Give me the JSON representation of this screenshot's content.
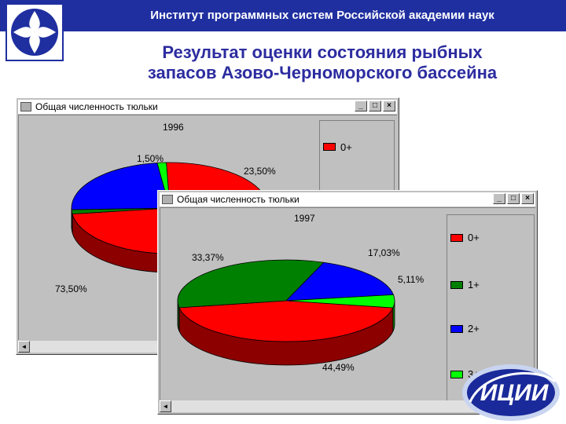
{
  "header": {
    "title": "Институт программных систем Российской академии наук"
  },
  "slide": {
    "title_line1": "Результат оценки состояния рыбных",
    "title_line2": "запасов Азово-Черноморского бассейна"
  },
  "windows": [
    {
      "title": "Общая численность тюльки",
      "year": "1996"
    },
    {
      "title": "Общая численность тюльки",
      "year": "1997"
    }
  ],
  "window_buttons": {
    "minimize": "_",
    "maximize": "□",
    "close": "×"
  },
  "scroll": {
    "left": "◄"
  },
  "brand_logo": {
    "text": "ИЦИИ",
    "colors": {
      "text": "#ffffff",
      "fill": "#1a2a9a"
    }
  },
  "colors": {
    "zero_plus": "#ff0000",
    "one_plus": "#008000",
    "two_plus": "#0000ff",
    "three_plus": "#00ff00"
  },
  "chart_data": [
    {
      "type": "pie",
      "title": "1996",
      "slices": [
        {
          "label": "0+",
          "value": 73.5,
          "text": "73,50%"
        },
        {
          "label": "1+",
          "value": 1.5,
          "text": "1,50%"
        },
        {
          "label": "2+",
          "value": 23.5,
          "text": "23,50%"
        },
        {
          "label": "3+",
          "value": 1.5
        }
      ],
      "legend": [
        "0+"
      ],
      "legend_position": "right"
    },
    {
      "type": "pie",
      "title": "1997",
      "slices": [
        {
          "label": "0+",
          "value": 44.49,
          "text": "44,49%"
        },
        {
          "label": "1+",
          "value": 33.37,
          "text": "33,37%"
        },
        {
          "label": "2+",
          "value": 17.03,
          "text": "17,03%"
        },
        {
          "label": "3+",
          "value": 5.11,
          "text": "5,11%"
        }
      ],
      "legend": [
        "0+",
        "1+",
        "2+",
        "3+"
      ],
      "legend_position": "right"
    }
  ]
}
